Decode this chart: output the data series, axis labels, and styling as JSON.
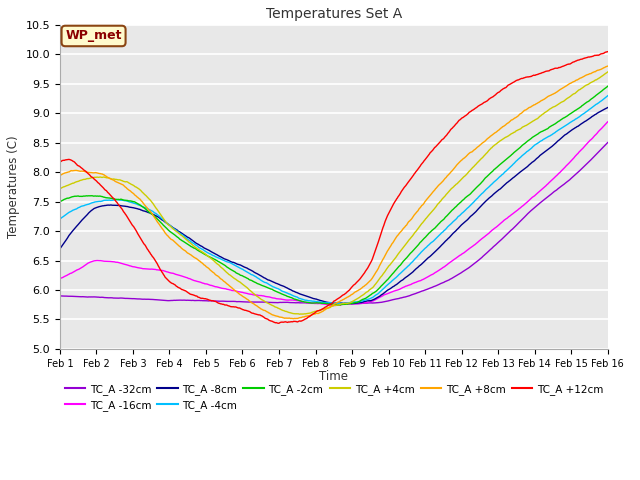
{
  "title": "Temperatures Set A",
  "ylabel": "Temperatures (C)",
  "xlabel": "Time",
  "ylim": [
    5.0,
    10.5
  ],
  "yticks": [
    5.0,
    5.5,
    6.0,
    6.5,
    7.0,
    7.5,
    8.0,
    8.5,
    9.0,
    9.5,
    10.0,
    10.5
  ],
  "xtick_labels": [
    "Feb 1",
    "Feb 2",
    "Feb 3",
    "Feb 4",
    "Feb 5",
    "Feb 6",
    "Feb 7",
    "Feb 8",
    "Feb 9",
    "Feb 10",
    "Feb 11",
    "Feb 12",
    "Feb 13",
    "Feb 14",
    "Feb 15",
    "Feb 16"
  ],
  "annotation": "WP_met",
  "annotation_color": "#8B0000",
  "annotation_bg": "#FFFACD",
  "annotation_border": "#8B4513",
  "series": [
    {
      "label": "TC_A -32cm",
      "color": "#9400D3"
    },
    {
      "label": "TC_A -16cm",
      "color": "#FF00FF"
    },
    {
      "label": "TC_A -8cm",
      "color": "#00008B"
    },
    {
      "label": "TC_A -4cm",
      "color": "#00BFFF"
    },
    {
      "label": "TC_A -2cm",
      "color": "#00CC00"
    },
    {
      "label": "TC_A +4cm",
      "color": "#CCCC00"
    },
    {
      "label": "TC_A +8cm",
      "color": "#FFA500"
    },
    {
      "label": "TC_A +12cm",
      "color": "#FF0000"
    }
  ],
  "fig_bg": "#FFFFFF",
  "plot_bg": "#E8E8E8",
  "grid_color": "#FFFFFF",
  "figsize": [
    6.4,
    4.8
  ],
  "dpi": 100
}
